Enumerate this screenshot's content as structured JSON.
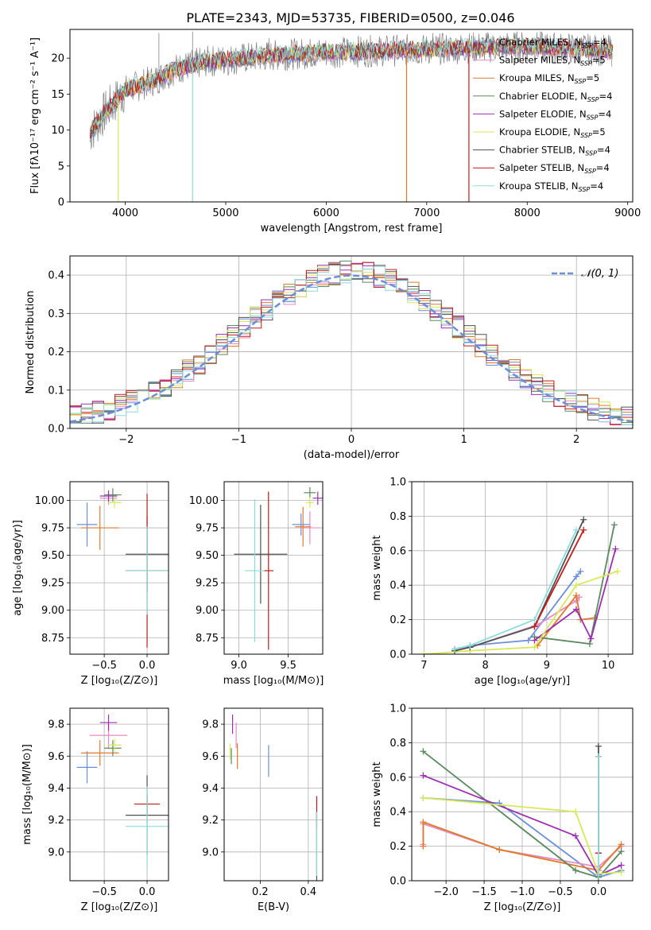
{
  "figure_title": "PLATE=2343, MJD=53735, FIBERID=0500, z=0.046",
  "colors": {
    "Chabrier MILES": "#6a8fd8",
    "Salpeter MILES": "#e58ac4",
    "Kroupa MILES": "#e07a2a",
    "Chabrier ELODIE": "#5a8a5e",
    "Salpeter ELODIE": "#9b2fb0",
    "Kroupa ELODIE": "#d8e85a",
    "Chabrier STELIB": "#505050",
    "Salpeter STELIB": "#c21b1b",
    "Kroupa STELIB": "#8edbdb",
    "normal": "#6a8fd8"
  },
  "chart_data": [
    {
      "id": "spectrum",
      "type": "line",
      "title": "PLATE=2343, MJD=53735, FIBERID=0500, z=0.046",
      "xlabel": "wavelength [Angstrom, rest frame]",
      "ylabel": "Flux [fλ10⁻¹⁷ erg cm⁻² s⁻¹ A⁻¹]",
      "xlim": [
        3450,
        9050
      ],
      "ylim": [
        0,
        24
      ],
      "xticks": [
        4000,
        5000,
        6000,
        7000,
        8000,
        9000
      ],
      "yticks": [
        0,
        5,
        10,
        15,
        20
      ],
      "legend_position": "top-right",
      "legend": [
        "Chabrier MILES, N_SSP=4",
        "Salpeter MILES, N_SSP=5",
        "Kroupa MILES, N_SSP=5",
        "Chabrier ELODIE, N_SSP=4",
        "Salpeter ELODIE, N_SSP=4",
        "Kroupa ELODIE, N_SSP=5",
        "Chabrier STELIB, N_SSP=4",
        "Salpeter STELIB, N_SSP=4",
        "Kroupa STELIB, N_SSP=4"
      ],
      "continuum": [
        [
          3650,
          9.5
        ],
        [
          3800,
          12.5
        ],
        [
          4000,
          15.5
        ],
        [
          4300,
          17
        ],
        [
          4500,
          18.5
        ],
        [
          4800,
          19.5
        ],
        [
          5200,
          20
        ],
        [
          5600,
          20.5
        ],
        [
          6000,
          20.8
        ],
        [
          6500,
          21
        ],
        [
          7000,
          21.2
        ],
        [
          7500,
          21.5
        ],
        [
          8000,
          21.6
        ],
        [
          8500,
          21.3
        ],
        [
          8850,
          21
        ]
      ],
      "data_spikes": [
        [
          4335,
          23.5
        ],
        [
          4670,
          23.7
        ],
        [
          5430,
          22.8
        ],
        [
          6320,
          23
        ],
        [
          7060,
          23.5
        ],
        [
          7690,
          22.5
        ]
      ],
      "model_dips": [
        [
          3930,
          0,
          "Kroupa ELODIE"
        ],
        [
          4670,
          0,
          "Kroupa STELIB"
        ],
        [
          6800,
          0,
          "Kroupa MILES"
        ],
        [
          7420,
          0,
          "Salpeter STELIB"
        ]
      ]
    },
    {
      "id": "residuals",
      "type": "histogram",
      "xlabel": "(data-model)/error",
      "ylabel": "Normed distribution",
      "xlim": [
        -2.5,
        2.5
      ],
      "ylim": [
        0,
        0.45
      ],
      "xticks": [
        -2,
        -1,
        0,
        1,
        2
      ],
      "yticks": [
        0.0,
        0.1,
        0.2,
        0.3,
        0.4
      ],
      "bin_width": 0.1,
      "legend": [
        "𝒩(0, 1)"
      ],
      "legend_position": "top-right",
      "grid": true
    },
    {
      "id": "age_vs_Z",
      "type": "errorbar",
      "xlabel": "Z [log₁₀(Z/Z⊙)]",
      "ylabel": "age  [log₁₀(age/yr)]",
      "xlim": [
        -0.9,
        0.25
      ],
      "ylim": [
        8.6,
        10.17
      ],
      "xticks": [
        -0.5,
        0.0
      ],
      "yticks": [
        8.75,
        9.0,
        9.25,
        9.5,
        9.75,
        10.0
      ],
      "points": [
        {
          "model": "Chabrier MILES",
          "x": -0.7,
          "y": 9.78,
          "xerr": 0.12,
          "yerr": 0.2
        },
        {
          "model": "Salpeter MILES",
          "x": -0.45,
          "y": 10.02,
          "xerr": 0.1,
          "yerr": 0.06
        },
        {
          "model": "Kroupa MILES",
          "x": -0.55,
          "y": 9.75,
          "xerr": 0.22,
          "yerr": 0.2
        },
        {
          "model": "Chabrier ELODIE",
          "x": -0.4,
          "y": 10.05,
          "xerr": 0.1,
          "yerr": 0.06
        },
        {
          "model": "Salpeter ELODIE",
          "x": -0.45,
          "y": 10.04,
          "xerr": 0.1,
          "yerr": 0.05
        },
        {
          "model": "Kroupa ELODIE",
          "x": -0.38,
          "y": 9.98,
          "xerr": 0.08,
          "yerr": 0.05
        },
        {
          "model": "Chabrier STELIB",
          "x": 0.0,
          "y": 9.51,
          "xerr": 0.25,
          "yerr": 0.35
        },
        {
          "model": "Salpeter STELIB",
          "x": 0.0,
          "y": 9.36,
          "xerr": 0.25,
          "yerr": 0.7
        },
        {
          "model": "Kroupa STELIB",
          "x": 0.0,
          "y": 9.36,
          "xerr": 0.25,
          "yerr": 0.4
        }
      ]
    },
    {
      "id": "age_vs_mass",
      "type": "errorbar",
      "xlabel": "mass [log₁₀(M/M⊙)]",
      "ylabel": "",
      "xlim": [
        8.85,
        9.85
      ],
      "ylim": [
        8.6,
        10.17
      ],
      "xticks": [
        9.0,
        9.5
      ],
      "yticks": [
        8.75,
        9.0,
        9.25,
        9.5,
        9.75,
        10.0
      ],
      "points": [
        {
          "model": "Chabrier MILES",
          "x": 9.63,
          "y": 9.78,
          "xerr": 0.09,
          "yerr": 0.1
        },
        {
          "model": "Salpeter MILES",
          "x": 9.72,
          "y": 9.75,
          "xerr": 0.1,
          "yerr": 0.15
        },
        {
          "model": "Kroupa MILES",
          "x": 9.65,
          "y": 9.76,
          "xerr": 0.08,
          "yerr": 0.18
        },
        {
          "model": "Chabrier ELODIE",
          "x": 9.72,
          "y": 10.07,
          "xerr": 0.06,
          "yerr": 0.05
        },
        {
          "model": "Salpeter ELODIE",
          "x": 9.8,
          "y": 10.02,
          "xerr": 0.05,
          "yerr": 0.06
        },
        {
          "model": "Kroupa ELODIE",
          "x": 9.72,
          "y": 9.98,
          "xerr": 0.04,
          "yerr": 0.05
        },
        {
          "model": "Chabrier STELIB",
          "x": 9.22,
          "y": 9.51,
          "xerr": 0.27,
          "yerr": 0.45
        },
        {
          "model": "Salpeter STELIB",
          "x": 9.3,
          "y": 9.36,
          "xerr": 0.05,
          "yerr": 0.72
        },
        {
          "model": "Kroupa STELIB",
          "x": 9.16,
          "y": 9.36,
          "xerr": 0.1,
          "yerr": 0.65
        }
      ]
    },
    {
      "id": "massweight_vs_age",
      "type": "line",
      "xlabel": "age  [log₁₀(age/yr)]",
      "ylabel": "mass weight",
      "xlim": [
        6.8,
        10.4
      ],
      "ylim": [
        0,
        1
      ],
      "xticks": [
        7,
        8,
        9,
        10
      ],
      "yticks": [
        0.0,
        0.2,
        0.4,
        0.6,
        0.8,
        1.0
      ],
      "series": [
        {
          "model": "Chabrier MILES",
          "x": [
            7.5,
            7.75,
            8.7,
            9.48,
            9.55
          ],
          "y": [
            0.03,
            0.05,
            0.08,
            0.45,
            0.48
          ]
        },
        {
          "model": "Salpeter MILES",
          "x": [
            7.5,
            7.75,
            8.85,
            9.48,
            9.53
          ],
          "y": [
            0.03,
            0.04,
            0.17,
            0.31,
            0.33
          ]
        },
        {
          "model": "Kroupa MILES",
          "x": [
            8.85,
            9.48,
            9.55,
            9.78
          ],
          "y": [
            0.05,
            0.34,
            0.2,
            0.21
          ]
        },
        {
          "model": "Chabrier ELODIE",
          "x": [
            8.8,
            9.7,
            10.1
          ],
          "y": [
            0.1,
            0.06,
            0.75
          ]
        },
        {
          "model": "Salpeter ELODIE",
          "x": [
            8.8,
            9.48,
            9.72,
            10.12
          ],
          "y": [
            0.08,
            0.26,
            0.09,
            0.61
          ]
        },
        {
          "model": "Kroupa ELODIE",
          "x": [
            7.0,
            7.75,
            8.8,
            9.48,
            10.15
          ],
          "y": [
            0.0,
            0.02,
            0.04,
            0.4,
            0.48
          ]
        },
        {
          "model": "Chabrier STELIB",
          "x": [
            7.5,
            7.75,
            8.8,
            9.6
          ],
          "y": [
            0.02,
            0.04,
            0.16,
            0.78
          ]
        },
        {
          "model": "Salpeter STELIB",
          "x": [
            8.8,
            9.6
          ],
          "y": [
            0.16,
            0.72
          ]
        },
        {
          "model": "Kroupa STELIB",
          "x": [
            7.5,
            7.75,
            8.8,
            9.48
          ],
          "y": [
            0.03,
            0.05,
            0.2,
            0.72
          ]
        }
      ]
    },
    {
      "id": "mass_vs_Z",
      "type": "errorbar",
      "xlabel": "Z [log₁₀(Z/Z⊙)]",
      "ylabel": "mass [log₁₀(M/M⊙)]",
      "xlim": [
        -0.9,
        0.25
      ],
      "ylim": [
        8.82,
        9.9
      ],
      "xticks": [
        -0.5,
        0.0
      ],
      "yticks": [
        9.0,
        9.2,
        9.4,
        9.6,
        9.8
      ],
      "points": [
        {
          "model": "Chabrier MILES",
          "x": -0.7,
          "y": 9.53,
          "xerr": 0.12,
          "yerr": 0.1
        },
        {
          "model": "Salpeter MILES",
          "x": -0.45,
          "y": 9.73,
          "xerr": 0.22,
          "yerr": 0.08
        },
        {
          "model": "Kroupa MILES",
          "x": -0.55,
          "y": 9.62,
          "xerr": 0.22,
          "yerr": 0.08
        },
        {
          "model": "Chabrier ELODIE",
          "x": -0.4,
          "y": 9.65,
          "xerr": 0.1,
          "yerr": 0.05
        },
        {
          "model": "Salpeter ELODIE",
          "x": -0.45,
          "y": 9.81,
          "xerr": 0.1,
          "yerr": 0.05
        },
        {
          "model": "Kroupa ELODIE",
          "x": -0.38,
          "y": 9.67,
          "xerr": 0.08,
          "yerr": 0.04
        },
        {
          "model": "Chabrier STELIB",
          "x": 0.0,
          "y": 9.23,
          "xerr": 0.25,
          "yerr": 0.25
        },
        {
          "model": "Salpeter STELIB",
          "x": 0.0,
          "y": 9.3,
          "xerr": 0.15,
          "yerr": 0.06
        },
        {
          "model": "Kroupa STELIB",
          "x": 0.0,
          "y": 9.16,
          "xerr": 0.25,
          "yerr": 0.25
        }
      ]
    },
    {
      "id": "mass_vs_ebv",
      "type": "errorbar",
      "xlabel": "E(B-V)",
      "ylabel": "",
      "xlim": [
        0.05,
        0.46
      ],
      "ylim": [
        8.82,
        9.9
      ],
      "xticks": [
        0.2,
        0.4
      ],
      "yticks": [
        9.0,
        9.2,
        9.4,
        9.6,
        9.8
      ],
      "points": [
        {
          "model": "Chabrier MILES",
          "x": 0.235,
          "y": 9.57,
          "xerr": 0.0,
          "yerr": 0.1
        },
        {
          "model": "Salpeter MILES",
          "x": 0.1,
          "y": 9.73,
          "xerr": 0.0,
          "yerr": 0.08
        },
        {
          "model": "Kroupa MILES",
          "x": 0.105,
          "y": 9.6,
          "xerr": 0.0,
          "yerr": 0.08
        },
        {
          "model": "Chabrier ELODIE",
          "x": 0.08,
          "y": 9.6,
          "xerr": 0.0,
          "yerr": 0.05
        },
        {
          "model": "Salpeter ELODIE",
          "x": 0.085,
          "y": 9.8,
          "xerr": 0.0,
          "yerr": 0.06
        },
        {
          "model": "Kroupa ELODIE",
          "x": 0.075,
          "y": 9.63,
          "xerr": 0.0,
          "yerr": 0.05
        },
        {
          "model": "Chabrier STELIB",
          "x": 0.435,
          "y": 9.0,
          "xerr": 0.0,
          "yerr": 0.25
        },
        {
          "model": "Salpeter STELIB",
          "x": 0.435,
          "y": 9.25,
          "xerr": 0.0,
          "yerr": 0.1
        },
        {
          "model": "Kroupa STELIB",
          "x": 0.435,
          "y": 9.05,
          "xerr": 0.0,
          "yerr": 0.2
        }
      ]
    },
    {
      "id": "massweight_vs_Z",
      "type": "line",
      "xlabel": "Z [log₁₀(Z/Z⊙)]",
      "ylabel": "mass weight",
      "xlim": [
        -2.45,
        0.45
      ],
      "ylim": [
        0,
        1
      ],
      "xticks": [
        -2.0,
        -1.5,
        -1.0,
        -0.5,
        0.0
      ],
      "yticks": [
        0.0,
        0.2,
        0.4,
        0.6,
        0.8,
        1.0
      ],
      "series": [
        {
          "model": "Chabrier MILES",
          "x": [
            -2.3,
            -1.3,
            0.0,
            0.3
          ],
          "y": [
            0.48,
            0.45,
            0.02,
            0.06
          ]
        },
        {
          "model": "Salpeter MILES",
          "x": [
            -2.3,
            -2.3,
            -1.3,
            0.0,
            0.3
          ],
          "y": [
            0.21,
            0.33,
            0.18,
            0.08,
            0.2
          ]
        },
        {
          "model": "Kroupa MILES",
          "x": [
            -2.3,
            -2.3,
            -1.3,
            0.0,
            0.3
          ],
          "y": [
            0.2,
            0.34,
            0.18,
            0.06,
            0.21
          ]
        },
        {
          "model": "Chabrier ELODIE",
          "x": [
            -2.3,
            -0.3,
            0.0,
            0.3
          ],
          "y": [
            0.75,
            0.06,
            0.02,
            0.17
          ]
        },
        {
          "model": "Salpeter ELODIE",
          "x": [
            -2.3,
            -0.3,
            0.0,
            0.3
          ],
          "y": [
            0.61,
            0.26,
            0.03,
            0.09
          ]
        },
        {
          "model": "Kroupa ELODIE",
          "x": [
            -2.3,
            -0.3,
            0.0,
            0.3
          ],
          "y": [
            0.48,
            0.4,
            0.04,
            0.05
          ]
        },
        {
          "model": "Chabrier STELIB",
          "x": [
            0.0,
            0.0
          ],
          "y": [
            0.16,
            0.78
          ]
        },
        {
          "model": "Salpeter STELIB",
          "x": [
            0.0,
            0.0
          ],
          "y": [
            0.16,
            0.72
          ]
        },
        {
          "model": "Kroupa STELIB",
          "x": [
            0.0,
            0.0
          ],
          "y": [
            0.03,
            0.72
          ]
        }
      ]
    }
  ]
}
